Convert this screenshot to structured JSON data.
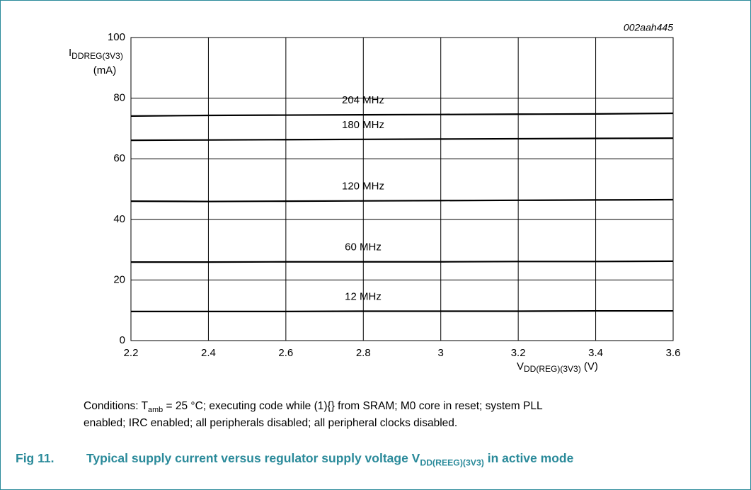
{
  "chart_data": {
    "type": "line",
    "figure_code": "002aah445",
    "y_label": {
      "main": "I",
      "sub": "DDREG(3V3)",
      "unit": "(mA)"
    },
    "x_label": {
      "main": "V",
      "sub": "DD(REG)(3V3)",
      "unit": "(V)"
    },
    "x": [
      2.2,
      2.4,
      2.6,
      2.8,
      3.0,
      3.2,
      3.4,
      3.6
    ],
    "xlim": [
      2.2,
      3.6
    ],
    "xticks": [
      2.2,
      2.4,
      2.6,
      2.8,
      3,
      3.2,
      3.4,
      3.6
    ],
    "ylim": [
      0,
      100
    ],
    "yticks": [
      0,
      20,
      40,
      60,
      80,
      100
    ],
    "grid": true,
    "series": [
      {
        "name": "204 MHz",
        "color": "#000000",
        "values": [
          74.1,
          74.3,
          74.4,
          74.5,
          74.6,
          74.7,
          74.8,
          75.0
        ]
      },
      {
        "name": "180 MHz",
        "color": "#000000",
        "values": [
          66.1,
          66.2,
          66.3,
          66.4,
          66.5,
          66.6,
          66.7,
          66.8
        ]
      },
      {
        "name": "120 MHz",
        "color": "#000000",
        "values": [
          46.0,
          45.9,
          46.0,
          46.1,
          46.2,
          46.3,
          46.4,
          46.5
        ]
      },
      {
        "name": "60 MHz",
        "color": "#000000",
        "values": [
          25.9,
          25.9,
          26.0,
          26.0,
          26.0,
          26.1,
          26.1,
          26.2
        ]
      },
      {
        "name": "12 MHz",
        "color": "#000000",
        "values": [
          9.6,
          9.6,
          9.6,
          9.7,
          9.7,
          9.7,
          9.8,
          9.8
        ]
      }
    ]
  },
  "conditions": {
    "start": "Conditions: T",
    "sub": "amb",
    "rest": " = 25 °C; executing code while (1){} from SRAM; M0 core in reset; system PLL",
    "line2": "enabled; IRC enabled; all peripherals disabled; all peripheral clocks disabled."
  },
  "caption": {
    "number": "Fig 11.",
    "title_start": "Typical supply current versus regulator supply voltage V",
    "title_sub": "DD(REEG)(3V3)",
    "title_end": " in active mode"
  }
}
